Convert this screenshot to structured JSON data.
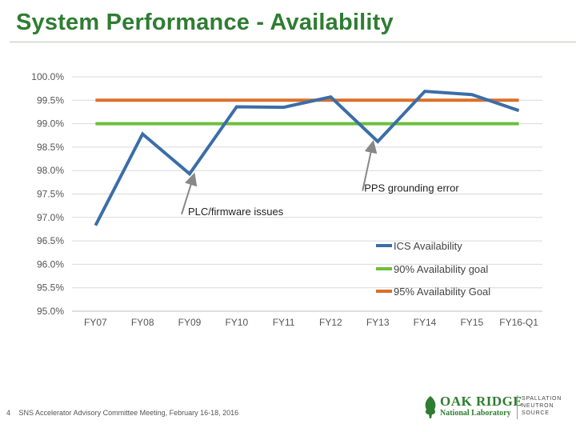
{
  "title": "System Performance - Availability",
  "footer": {
    "page_number": "4",
    "text": "SNS Accelerator Advisory Committee Meeting, February 16-18, 2016"
  },
  "logo": {
    "name": "OAK RIDGE",
    "subtitle": "National Laboratory",
    "division": "SPALLATION\nNEUTRON\nSOURCE"
  },
  "colors": {
    "title": "#2e7d32",
    "ics": "#3b6ea8",
    "goal90": "#6cbf3c",
    "goal95": "#d9702a",
    "grid": "#d9d9d9",
    "annotation_arrow": "#888888"
  },
  "chart_data": {
    "type": "line",
    "categories": [
      "FY07",
      "FY08",
      "FY09",
      "FY10",
      "FY11",
      "FY12",
      "FY13",
      "FY14",
      "FY15",
      "FY16-Q1"
    ],
    "ylim": [
      95.0,
      100.0
    ],
    "yticks": [
      "95.0%",
      "95.5%",
      "96.0%",
      "96.5%",
      "97.0%",
      "97.5%",
      "98.0%",
      "98.5%",
      "99.0%",
      "99.5%",
      "100.0%"
    ],
    "series": [
      {
        "name": "ICS Availability",
        "color": "#3b6ea8",
        "values": [
          96.83,
          98.78,
          97.93,
          99.36,
          99.35,
          99.57,
          98.62,
          99.69,
          99.62,
          99.28
        ]
      },
      {
        "name": "90% Availability goal",
        "color": "#6cbf3c",
        "values": [
          99.0,
          99.0,
          99.0,
          99.0,
          99.0,
          99.0,
          99.0,
          99.0,
          99.0,
          99.0
        ]
      },
      {
        "name": "95% Availability Goal",
        "color": "#d9702a",
        "values": [
          99.5,
          99.5,
          99.5,
          99.5,
          99.5,
          99.5,
          99.5,
          99.5,
          99.5,
          99.5
        ]
      }
    ],
    "annotations": [
      {
        "text": "PLC/firmware issues",
        "target_category": "FY09",
        "target_value": 97.93,
        "label_value": 97.0
      },
      {
        "text": "PPS grounding error",
        "target_category": "FY13",
        "target_value": 98.62,
        "label_value": 97.5
      }
    ],
    "legend": "right"
  }
}
